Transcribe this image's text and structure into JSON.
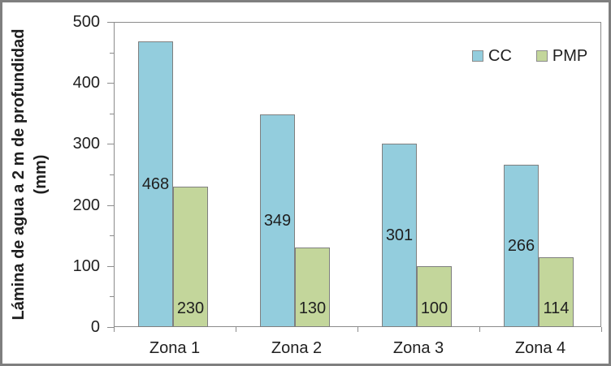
{
  "chart_data": {
    "type": "bar",
    "title": "",
    "categories": [
      "Zona 1",
      "Zona 2",
      "Zona 3",
      "Zona 4"
    ],
    "series": [
      {
        "name": "CC",
        "color": "#93CDDD",
        "values": [
          468,
          349,
          301,
          266
        ],
        "data_label_position": "center"
      },
      {
        "name": "PMP",
        "color": "#C3D69B",
        "values": [
          230,
          130,
          100,
          114
        ],
        "data_label_position": "inside-base"
      }
    ],
    "ylabel_line1": "Lámina de agua a 2 m de profundidad",
    "ylabel_line2": "(mm)",
    "ylim": [
      0,
      500
    ],
    "y_major_ticks": [
      0,
      100,
      200,
      300,
      400,
      500
    ],
    "y_minor_tick_step": 50,
    "grid": false,
    "data_labels_shown": true,
    "legend_position": "top-right-inside",
    "legend_entries": [
      "CC",
      "PMP"
    ]
  },
  "colors": {
    "cc_fill": "#93CDDD",
    "pmp_fill": "#C3D69B",
    "bar_border": "#7F7F7F",
    "axis_and_plot_border": "#8C8C8C",
    "outer_border": "#7F7F7F",
    "text": "#1F1F1F",
    "background": "#FFFFFF"
  }
}
